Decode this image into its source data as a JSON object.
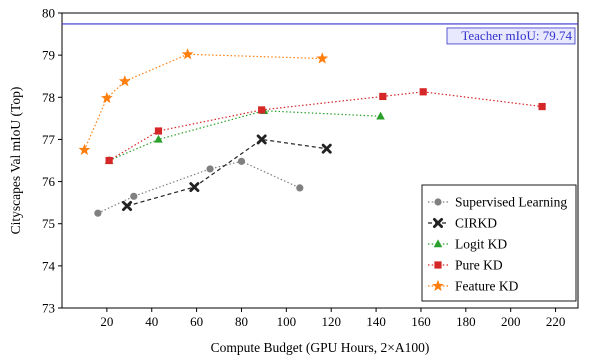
{
  "chart_data": {
    "type": "line",
    "title": "",
    "xlabel": "Compute Budget (GPU Hours, 2×A100)",
    "ylabel": "Cityscapes Val mIoU (Top)",
    "xlim": [
      0,
      230
    ],
    "ylim": [
      73,
      80
    ],
    "xticks": [
      20,
      40,
      60,
      80,
      100,
      120,
      140,
      160,
      180,
      200,
      220
    ],
    "yticks": [
      73,
      74,
      75,
      76,
      77,
      78,
      79,
      80
    ],
    "grid": false,
    "legend_position": "bottom-right",
    "reference_line": {
      "label": "Teacher mIoU: 79.74",
      "value": 79.74,
      "color": "#3333cc"
    },
    "series": [
      {
        "name": "Supervised Learning",
        "color": "#808080",
        "marker": "circle",
        "points": [
          [
            16,
            75.25
          ],
          [
            32,
            75.65
          ],
          [
            66,
            76.3
          ],
          [
            80,
            76.48
          ],
          [
            106,
            75.85
          ]
        ]
      },
      {
        "name": "CIRKD",
        "color": "#222222",
        "marker": "x",
        "points": [
          [
            29,
            75.42
          ],
          [
            59,
            75.87
          ],
          [
            89,
            77.0
          ],
          [
            118,
            76.78
          ]
        ]
      },
      {
        "name": "Logit KD",
        "color": "#2ca02c",
        "marker": "triangle",
        "points": [
          [
            21,
            76.5
          ],
          [
            43,
            77.0
          ],
          [
            90,
            77.68
          ],
          [
            142,
            77.55
          ]
        ]
      },
      {
        "name": "Pure KD",
        "color": "#d62728",
        "marker": "square",
        "points": [
          [
            21,
            76.5
          ],
          [
            43,
            77.2
          ],
          [
            89,
            77.7
          ],
          [
            143,
            78.02
          ],
          [
            161,
            78.13
          ],
          [
            214,
            77.78
          ]
        ]
      },
      {
        "name": "Feature KD",
        "color": "#ff7f0e",
        "marker": "star",
        "points": [
          [
            10,
            76.75
          ],
          [
            20,
            77.98
          ],
          [
            28,
            78.38
          ],
          [
            56,
            79.02
          ],
          [
            116,
            78.92
          ]
        ]
      }
    ]
  }
}
